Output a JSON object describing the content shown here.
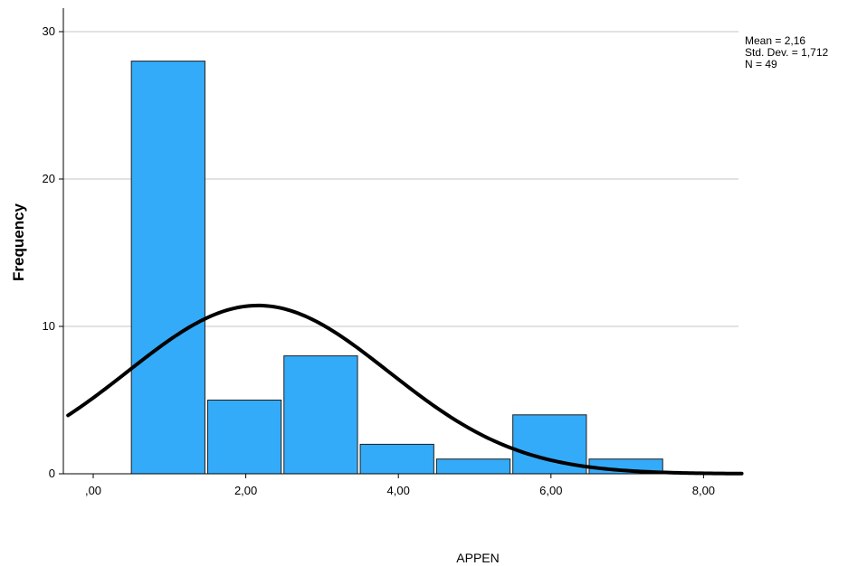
{
  "chart_data": {
    "type": "bar",
    "subtype": "histogram",
    "xlabel": "APPEN",
    "ylabel": "Frequency",
    "x_tick_labels": [
      ",00",
      "2,00",
      "4,00",
      "6,00",
      "8,00"
    ],
    "x_ticks": [
      0,
      2,
      4,
      6,
      8
    ],
    "y_ticks": [
      0,
      10,
      20,
      30
    ],
    "xlim": [
      -0.33,
      8.5
    ],
    "ylim": [
      0,
      31
    ],
    "grid": "horizontal",
    "bins": [
      {
        "start": 0.5,
        "end": 1.5,
        "count": 28
      },
      {
        "start": 1.5,
        "end": 2.5,
        "count": 5
      },
      {
        "start": 2.5,
        "end": 3.5,
        "count": 8
      },
      {
        "start": 3.5,
        "end": 4.5,
        "count": 2
      },
      {
        "start": 4.5,
        "end": 5.5,
        "count": 1
      },
      {
        "start": 5.5,
        "end": 6.5,
        "count": 4
      },
      {
        "start": 6.5,
        "end": 7.5,
        "count": 1
      }
    ],
    "normal_curve": {
      "mean": 2.16,
      "sd": 1.712,
      "n": 49,
      "bin_width": 1
    },
    "stats": {
      "mean_label": "Mean = 2,16",
      "sd_label": "Std. Dev. = 1,712",
      "n_label": "N = 49"
    },
    "colors": {
      "bar_fill": "#33abf9",
      "bar_stroke": "#1f1f1f",
      "curve": "#000000",
      "grid": "#c4c4c4",
      "axis": "#000000"
    }
  }
}
